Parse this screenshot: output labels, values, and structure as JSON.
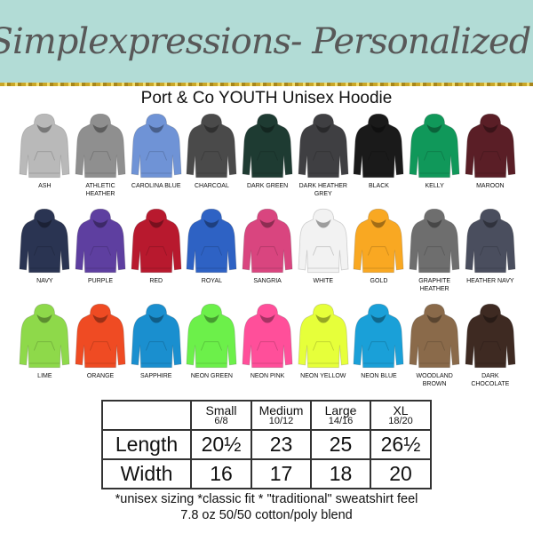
{
  "banner": {
    "text": "Simplexpressions- Personalized!"
  },
  "product_title": "Port & Co YOUTH Unisex Hoodie",
  "colors": [
    {
      "name": "ASH",
      "hex": "#b9b9b9"
    },
    {
      "name": "ATHLETIC HEATHER",
      "hex": "#8f8f8f"
    },
    {
      "name": "CAROLINA BLUE",
      "hex": "#6f93d6"
    },
    {
      "name": "CHARCOAL",
      "hex": "#4a4a4a"
    },
    {
      "name": "DARK GREEN",
      "hex": "#1e3b32"
    },
    {
      "name": "DARK HEATHER GREY",
      "hex": "#3f3f42"
    },
    {
      "name": "BLACK",
      "hex": "#1a1a1a"
    },
    {
      "name": "KELLY",
      "hex": "#10985a"
    },
    {
      "name": "MAROON",
      "hex": "#5a1e26"
    },
    {
      "name": "NAVY",
      "hex": "#2a3452"
    },
    {
      "name": "PURPLE",
      "hex": "#5e3fa0"
    },
    {
      "name": "RED",
      "hex": "#b8192e"
    },
    {
      "name": "ROYAL",
      "hex": "#2e62c4"
    },
    {
      "name": "SANGRIA",
      "hex": "#d9457f"
    },
    {
      "name": "WHITE",
      "hex": "#f2f2f2"
    },
    {
      "name": "GOLD",
      "hex": "#f9a822"
    },
    {
      "name": "GRAPHITE HEATHER",
      "hex": "#6e6e6e"
    },
    {
      "name": "HEATHER NAVY",
      "hex": "#4a4e5e"
    },
    {
      "name": "LIME",
      "hex": "#8ed94a"
    },
    {
      "name": "ORANGE",
      "hex": "#ef4b23"
    },
    {
      "name": "SAPPHIRE",
      "hex": "#1a8fcf"
    },
    {
      "name": "NEON GREEN",
      "hex": "#6cf04a"
    },
    {
      "name": "NEON PINK",
      "hex": "#ff4f9a"
    },
    {
      "name": "NEON YELLOW",
      "hex": "#e6ff3a"
    },
    {
      "name": "NEON BLUE",
      "hex": "#1aa0d8"
    },
    {
      "name": "WOODLAND BROWN",
      "hex": "#8a6a4a"
    },
    {
      "name": "DARK CHOCOLATE",
      "hex": "#3e2a22"
    }
  ],
  "size_table": {
    "sizes": [
      {
        "name": "Small",
        "range": "6/8"
      },
      {
        "name": "Medium",
        "range": "10/12"
      },
      {
        "name": "Large",
        "range": "14/16"
      },
      {
        "name": "XL",
        "range": "18/20"
      }
    ],
    "rows": [
      {
        "label": "Length",
        "values": [
          "20½",
          "23",
          "25",
          "26½"
        ]
      },
      {
        "label": "Width",
        "values": [
          "16",
          "17",
          "18",
          "20"
        ]
      }
    ]
  },
  "notes": [
    "*unisex sizing *classic fit * \"traditional\" sweatshirt feel",
    "7.8 oz 50/50 cotton/poly blend"
  ]
}
